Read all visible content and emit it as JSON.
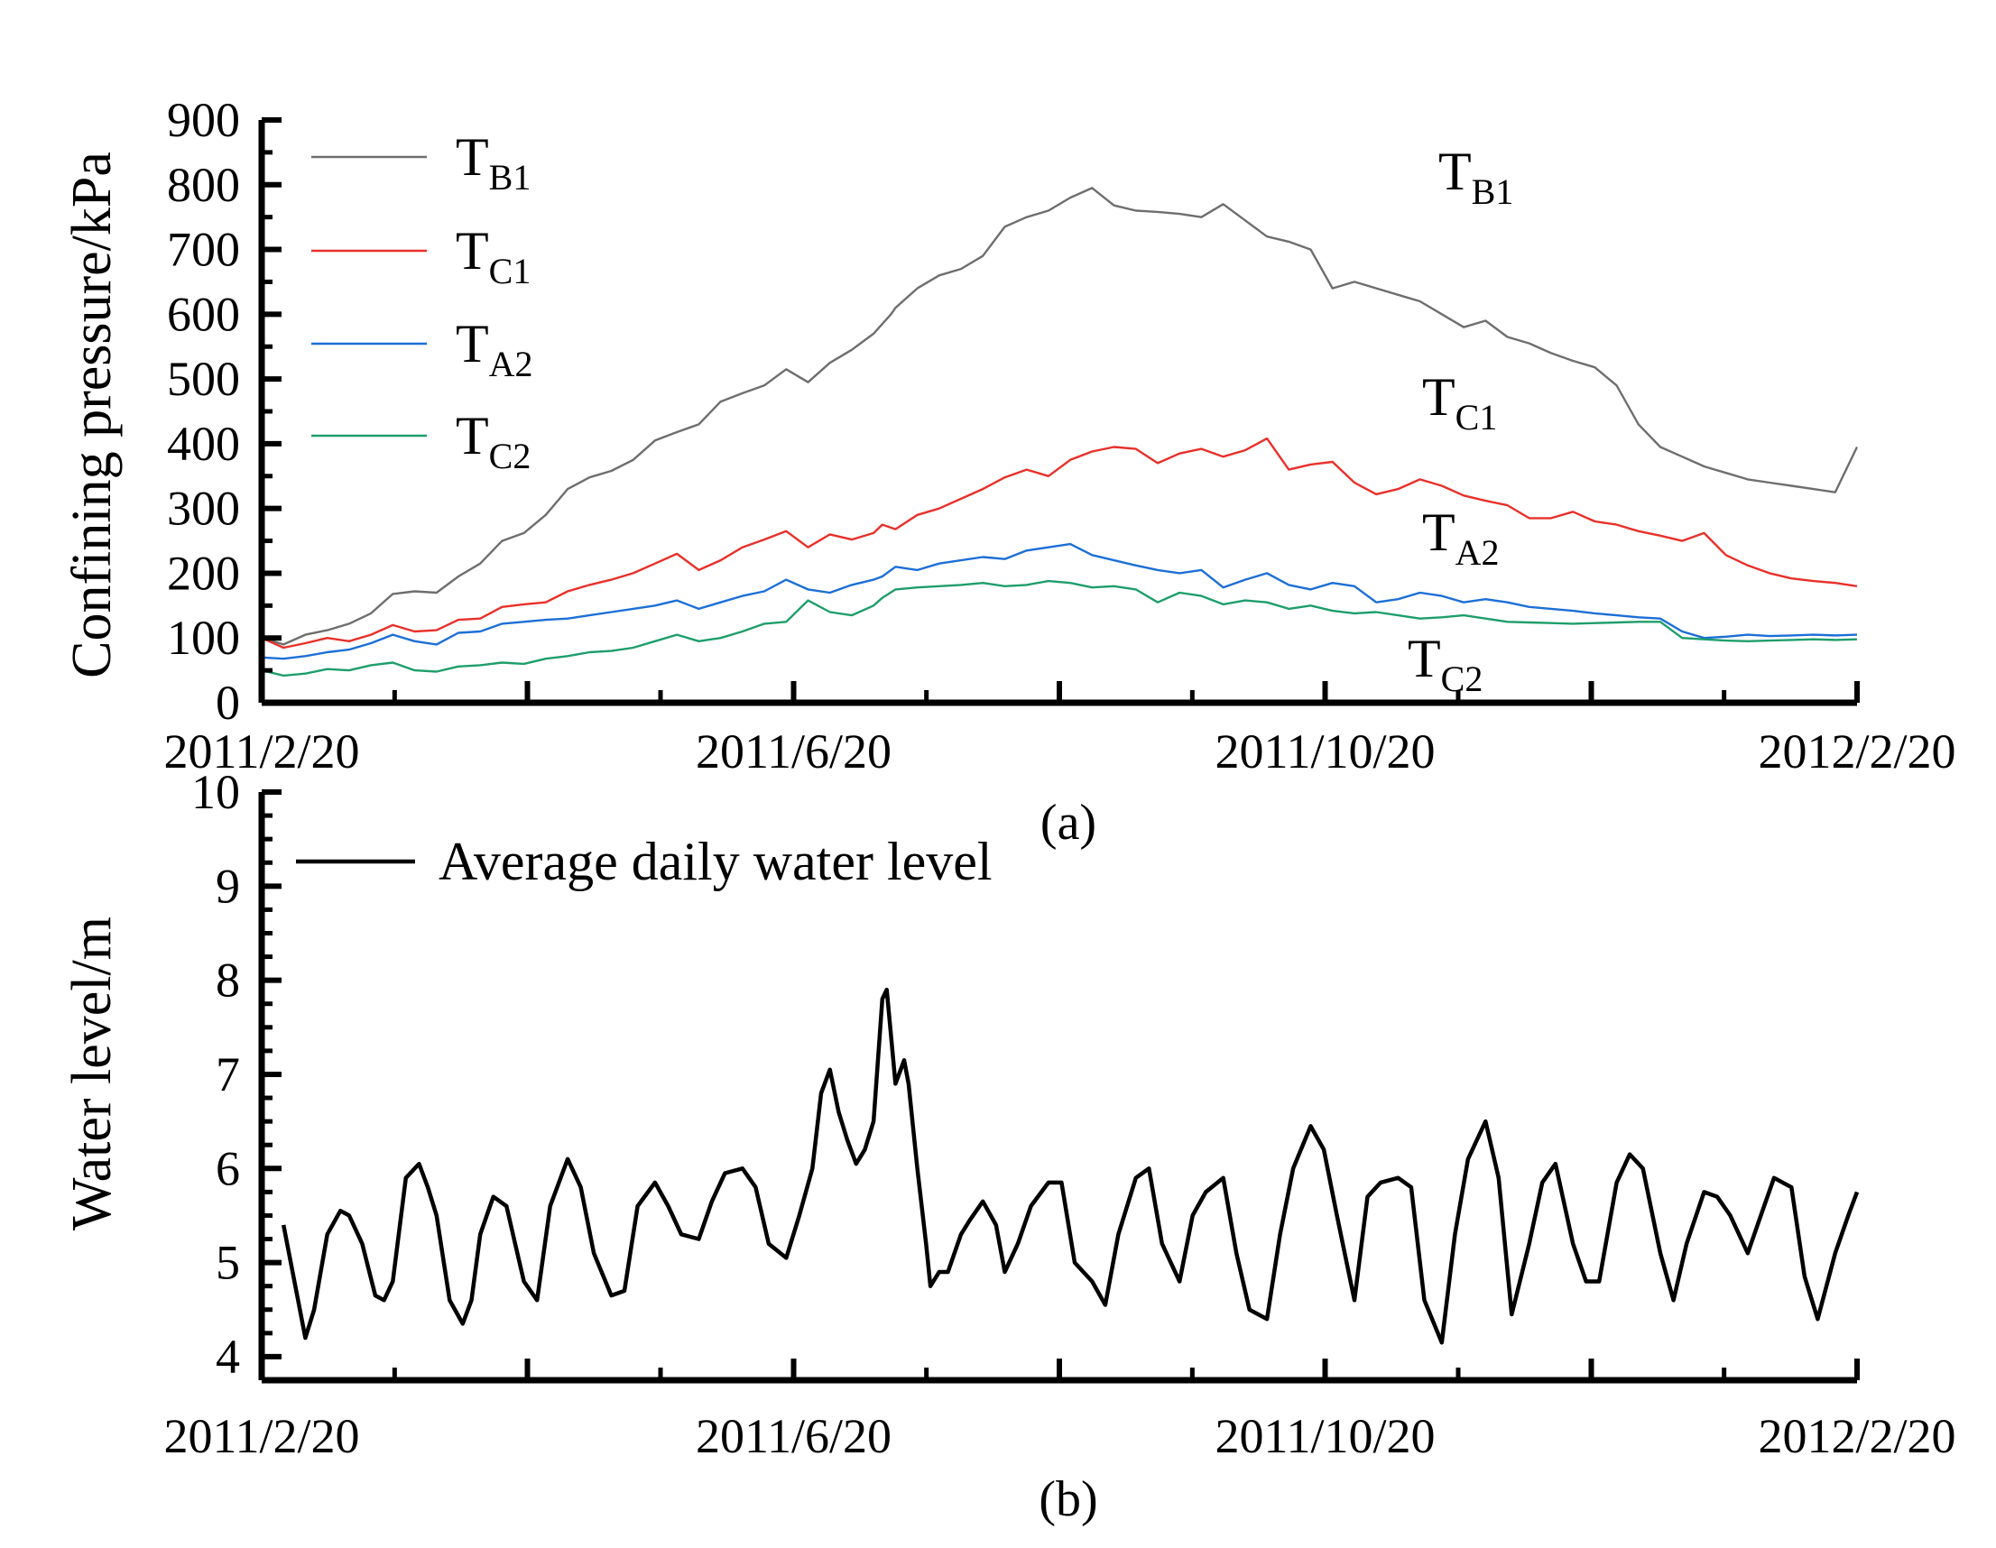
{
  "figure": {
    "panel_a_label": "(a)",
    "panel_b_label": "(b)"
  },
  "chart_data": [
    {
      "type": "line",
      "panel": "(a)",
      "title": "",
      "xlabel": "",
      "ylabel": "Confining pressure/kPa",
      "ylim": [
        0,
        900
      ],
      "yticks": [
        "0",
        "100",
        "200",
        "300",
        "400",
        "500",
        "600",
        "700",
        "800",
        "900"
      ],
      "xlim": [
        0,
        365
      ],
      "xticks": [
        {
          "label": "2011/2/20",
          "day": 0
        },
        {
          "label": "2011/6/20",
          "day": 120
        },
        {
          "label": "2011/10/20",
          "day": 242
        },
        {
          "label": "2012/2/20",
          "day": 365
        }
      ],
      "grid": false,
      "legend_position": "top-left",
      "series": [
        {
          "name": "T_B1",
          "main": "T",
          "sub": "B1",
          "color": "#6e6e6e",
          "x": [
            0,
            5,
            10,
            15,
            20,
            25,
            30,
            35,
            40,
            45,
            50,
            55,
            60,
            65,
            70,
            75,
            80,
            85,
            90,
            95,
            100,
            105,
            110,
            115,
            120,
            125,
            130,
            135,
            140,
            142,
            144,
            145,
            150,
            155,
            160,
            165,
            170,
            175,
            180,
            185,
            190,
            195,
            200,
            205,
            210,
            215,
            220,
            225,
            230,
            235,
            240,
            245,
            250,
            255,
            260,
            265,
            270,
            275,
            280,
            285,
            290,
            295,
            300,
            305,
            310,
            315,
            320,
            325,
            330,
            335,
            340,
            345,
            350,
            355,
            360,
            365
          ],
          "values": [
            100,
            90,
            105,
            112,
            122,
            138,
            168,
            172,
            170,
            195,
            215,
            250,
            262,
            290,
            330,
            348,
            358,
            375,
            405,
            418,
            430,
            465,
            478,
            490,
            515,
            495,
            525,
            545,
            570,
            585,
            600,
            610,
            640,
            660,
            670,
            690,
            735,
            750,
            760,
            780,
            795,
            768,
            760,
            758,
            755,
            750,
            770,
            745,
            720,
            712,
            700,
            640,
            650,
            640,
            630,
            620,
            600,
            580,
            590,
            565,
            555,
            540,
            528,
            518,
            490,
            430,
            395,
            380,
            365,
            355,
            345,
            340,
            335,
            330,
            325,
            395
          ]
        },
        {
          "name": "T_C1",
          "main": "T",
          "sub": "C1",
          "color": "#e8302a",
          "x": [
            0,
            5,
            10,
            15,
            20,
            25,
            30,
            35,
            40,
            45,
            50,
            55,
            60,
            65,
            70,
            75,
            80,
            85,
            90,
            95,
            100,
            105,
            110,
            115,
            120,
            125,
            130,
            135,
            140,
            142,
            145,
            150,
            155,
            160,
            165,
            170,
            175,
            180,
            185,
            190,
            195,
            200,
            205,
            210,
            215,
            220,
            225,
            230,
            235,
            240,
            245,
            250,
            255,
            260,
            265,
            270,
            275,
            280,
            285,
            290,
            295,
            300,
            305,
            310,
            315,
            320,
            325,
            330,
            335,
            340,
            345,
            350,
            355,
            360,
            365
          ],
          "values": [
            100,
            85,
            92,
            100,
            95,
            105,
            120,
            110,
            112,
            128,
            130,
            148,
            152,
            155,
            172,
            182,
            190,
            200,
            215,
            230,
            205,
            220,
            240,
            252,
            265,
            240,
            260,
            252,
            262,
            275,
            268,
            290,
            300,
            315,
            330,
            348,
            360,
            350,
            375,
            388,
            395,
            392,
            370,
            385,
            392,
            380,
            390,
            408,
            360,
            368,
            372,
            340,
            322,
            330,
            345,
            335,
            320,
            312,
            305,
            285,
            285,
            295,
            280,
            275,
            265,
            258,
            250,
            262,
            228,
            212,
            200,
            192,
            188,
            185,
            180
          ]
        },
        {
          "name": "T_A2",
          "main": "T",
          "sub": "A2",
          "color": "#1c6fd6",
          "x": [
            0,
            5,
            10,
            15,
            20,
            25,
            30,
            35,
            40,
            45,
            50,
            55,
            60,
            65,
            70,
            75,
            80,
            85,
            90,
            95,
            100,
            105,
            110,
            115,
            120,
            125,
            130,
            135,
            140,
            142,
            145,
            150,
            155,
            160,
            165,
            170,
            175,
            180,
            185,
            190,
            195,
            200,
            205,
            210,
            215,
            220,
            225,
            230,
            235,
            240,
            245,
            250,
            255,
            260,
            265,
            270,
            275,
            280,
            285,
            290,
            295,
            300,
            305,
            310,
            315,
            320,
            325,
            330,
            335,
            340,
            345,
            350,
            355,
            360,
            365
          ],
          "values": [
            70,
            68,
            72,
            78,
            82,
            92,
            105,
            95,
            90,
            108,
            110,
            122,
            125,
            128,
            130,
            135,
            140,
            145,
            150,
            158,
            145,
            155,
            165,
            172,
            190,
            175,
            170,
            182,
            190,
            195,
            210,
            205,
            215,
            220,
            225,
            222,
            235,
            240,
            245,
            228,
            220,
            212,
            205,
            200,
            205,
            178,
            190,
            200,
            182,
            175,
            185,
            180,
            155,
            160,
            170,
            165,
            155,
            160,
            155,
            148,
            145,
            142,
            138,
            135,
            132,
            130,
            110,
            100,
            102,
            105,
            103,
            104,
            105,
            104,
            105
          ]
        },
        {
          "name": "T_C2",
          "main": "T",
          "sub": "C2",
          "color": "#1e9e6b",
          "x": [
            0,
            5,
            10,
            15,
            20,
            25,
            30,
            35,
            40,
            45,
            50,
            55,
            60,
            65,
            70,
            75,
            80,
            85,
            90,
            95,
            100,
            105,
            110,
            115,
            120,
            125,
            130,
            135,
            140,
            142,
            145,
            150,
            155,
            160,
            165,
            170,
            175,
            180,
            185,
            190,
            195,
            200,
            205,
            210,
            215,
            220,
            225,
            230,
            235,
            240,
            245,
            250,
            255,
            260,
            265,
            270,
            275,
            280,
            285,
            290,
            295,
            300,
            305,
            310,
            315,
            320,
            325,
            330,
            335,
            340,
            345,
            350,
            355,
            360,
            365
          ],
          "values": [
            50,
            42,
            45,
            52,
            50,
            58,
            62,
            50,
            48,
            56,
            58,
            62,
            60,
            68,
            72,
            78,
            80,
            85,
            95,
            105,
            95,
            100,
            110,
            122,
            125,
            158,
            140,
            135,
            150,
            162,
            175,
            178,
            180,
            182,
            185,
            180,
            182,
            188,
            185,
            178,
            180,
            175,
            155,
            170,
            165,
            152,
            158,
            155,
            145,
            150,
            142,
            138,
            140,
            135,
            130,
            132,
            135,
            130,
            125,
            124,
            123,
            122,
            123,
            124,
            125,
            125,
            100,
            98,
            96,
            95,
            96,
            97,
            98,
            97,
            98
          ]
        }
      ],
      "annotations": [
        {
          "main": "T",
          "sub": "B1"
        },
        {
          "main": "T",
          "sub": "C1"
        },
        {
          "main": "T",
          "sub": "A2"
        },
        {
          "main": "T",
          "sub": "C2"
        }
      ]
    },
    {
      "type": "line",
      "panel": "(b)",
      "title": "",
      "xlabel": "",
      "ylabel": "Water level/m",
      "ylim": [
        3.75,
        10
      ],
      "yticks": [
        "4",
        "5",
        "6",
        "7",
        "8",
        "9",
        "10"
      ],
      "xlim": [
        0,
        365
      ],
      "xticks": [
        {
          "label": "2011/2/20",
          "day": 0
        },
        {
          "label": "2011/6/20",
          "day": 120
        },
        {
          "label": "2011/10/20",
          "day": 242
        },
        {
          "label": "2012/2/20",
          "day": 365
        }
      ],
      "grid": false,
      "legend_position": "top-left",
      "series": [
        {
          "name": "Average daily water level",
          "color": "#000000",
          "x": [
            5,
            10,
            12,
            15,
            18,
            20,
            23,
            26,
            28,
            30,
            33,
            36,
            38,
            40,
            43,
            46,
            48,
            50,
            53,
            56,
            58,
            60,
            63,
            66,
            70,
            73,
            76,
            80,
            83,
            86,
            90,
            93,
            96,
            100,
            103,
            106,
            110,
            113,
            116,
            120,
            123,
            126,
            128,
            130,
            132,
            134,
            136,
            138,
            140,
            142,
            143,
            145,
            147,
            148,
            150,
            152,
            153,
            155,
            157,
            160,
            162,
            165,
            168,
            170,
            173,
            176,
            180,
            183,
            186,
            190,
            193,
            196,
            200,
            203,
            206,
            210,
            213,
            216,
            220,
            223,
            226,
            230,
            233,
            236,
            240,
            243,
            246,
            250,
            253,
            256,
            260,
            263,
            266,
            270,
            273,
            276,
            280,
            283,
            286,
            290,
            293,
            296,
            300,
            303,
            306,
            310,
            313,
            316,
            320,
            323,
            326,
            330,
            333,
            336,
            340,
            343,
            346,
            350,
            353,
            356,
            360,
            363,
            365
          ],
          "values": [
            5.4,
            4.2,
            4.5,
            5.3,
            5.55,
            5.5,
            5.2,
            4.65,
            4.6,
            4.8,
            5.9,
            6.05,
            5.8,
            5.5,
            4.6,
            4.35,
            4.6,
            5.3,
            5.7,
            5.6,
            5.2,
            4.8,
            4.6,
            5.6,
            6.1,
            5.8,
            5.1,
            4.65,
            4.7,
            5.6,
            5.85,
            5.6,
            5.3,
            5.25,
            5.65,
            5.95,
            6.0,
            5.8,
            5.2,
            5.05,
            5.5,
            6.0,
            6.8,
            7.05,
            6.6,
            6.3,
            6.05,
            6.2,
            6.5,
            7.8,
            7.9,
            6.9,
            7.15,
            6.9,
            6.0,
            5.2,
            4.75,
            4.9,
            4.9,
            5.3,
            5.45,
            5.65,
            5.4,
            4.9,
            5.2,
            5.6,
            5.85,
            5.85,
            5.0,
            4.8,
            4.55,
            5.3,
            5.9,
            6.0,
            5.2,
            4.8,
            5.5,
            5.75,
            5.9,
            5.1,
            4.5,
            4.4,
            5.3,
            6.0,
            6.45,
            6.2,
            5.5,
            4.6,
            5.7,
            5.85,
            5.9,
            5.8,
            4.6,
            4.15,
            5.3,
            6.1,
            6.5,
            5.9,
            4.45,
            5.2,
            5.85,
            6.05,
            5.2,
            4.8,
            4.8,
            5.85,
            6.15,
            6.0,
            5.1,
            4.6,
            5.2,
            5.75,
            5.7,
            5.5,
            5.1,
            5.5,
            5.9,
            5.8,
            4.85,
            4.4,
            5.1,
            5.5,
            5.75
          ]
        }
      ]
    }
  ]
}
